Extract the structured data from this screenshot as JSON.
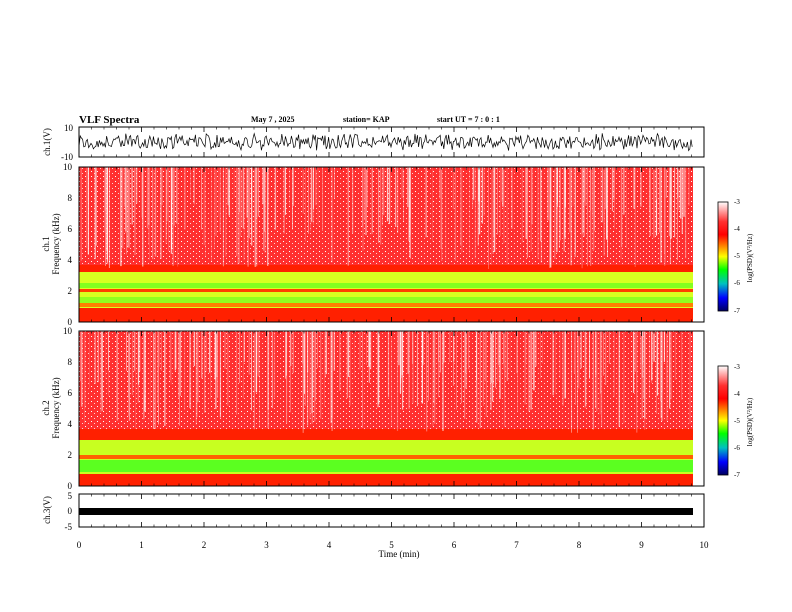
{
  "header": {
    "title": "VLF Spectra",
    "date": "May 7 , 2025",
    "station": "station= KAP",
    "start": "start UT = 7 : 0 : 1"
  },
  "colorbar": {
    "label": "log(PSD)(V²/Hz)",
    "ticks": [
      "-3",
      "-4",
      "-5",
      "-6",
      "-7"
    ],
    "colors": [
      "#ffffff",
      "#ff0000",
      "#ffff00",
      "#00ff00",
      "#00cccc",
      "#0000ff",
      "#000080"
    ]
  },
  "chart_data": [
    {
      "type": "line",
      "title": "",
      "xlabel": "",
      "ylabel": "ch.1(V)",
      "xlim": [
        0,
        10
      ],
      "ylim": [
        -10,
        10
      ],
      "yticks": [
        "10",
        "-10"
      ],
      "description_signal": "dense noisy waveform spanning roughly -8 to +8 V over 0–9.8 min"
    },
    {
      "type": "heatmap",
      "ylabel_top": "ch.1",
      "ylabel": "Frequency (kHz)",
      "xlim": [
        0,
        10
      ],
      "ylim": [
        0,
        10
      ],
      "yticks": [
        "0",
        "2",
        "4",
        "6",
        "8",
        "10"
      ],
      "colorbar_range": [
        -7,
        -3
      ]
    },
    {
      "type": "heatmap",
      "ylabel_top": "ch.2",
      "ylabel": "Frequency (kHz)",
      "xlim": [
        0,
        10
      ],
      "ylim": [
        0,
        10
      ],
      "yticks": [
        "0",
        "2",
        "4",
        "6",
        "8",
        "10"
      ],
      "colorbar_range": [
        -7,
        -3
      ]
    },
    {
      "type": "line",
      "xlabel": "Time (min)",
      "ylabel": "ch.3(V)",
      "xlim": [
        0,
        10
      ],
      "ylim": [
        -5,
        5
      ],
      "yticks": [
        "5",
        "0",
        "-5"
      ],
      "xticks": [
        "0",
        "1",
        "2",
        "3",
        "4",
        "5",
        "6",
        "7",
        "8",
        "9",
        "10"
      ]
    }
  ]
}
